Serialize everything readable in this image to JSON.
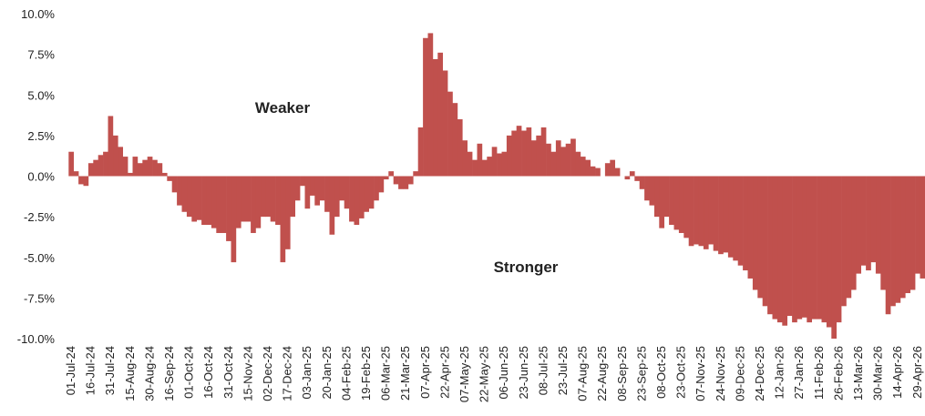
{
  "chart_data": {
    "type": "bar",
    "color": "#c0504d",
    "grid": false,
    "annotations": [
      "Weaker",
      "Stronger"
    ],
    "ylim": [
      -10,
      10
    ],
    "yticks": [
      {
        "value": -10,
        "label": "-10.0%"
      },
      {
        "value": -7.5,
        "label": "-7.5%"
      },
      {
        "value": -5,
        "label": "-5.0%"
      },
      {
        "value": -2.5,
        "label": "-2.5%"
      },
      {
        "value": 0,
        "label": "0.0%"
      },
      {
        "value": 2.5,
        "label": "2.5%"
      },
      {
        "value": 5,
        "label": "5.0%"
      },
      {
        "value": 7.5,
        "label": "7.5%"
      },
      {
        "value": 10,
        "label": "10.0%"
      }
    ],
    "categories": [
      "01-Jul-24",
      null,
      null,
      null,
      "16-Jul-24",
      null,
      null,
      null,
      "31-Jul-24",
      null,
      null,
      null,
      "15-Aug-24",
      null,
      null,
      null,
      "30-Aug-24",
      null,
      null,
      null,
      "16-Sep-24",
      null,
      null,
      null,
      "01-Oct-24",
      null,
      null,
      null,
      "16-Oct-24",
      null,
      null,
      null,
      "31-Oct-24",
      null,
      null,
      null,
      "15-Nov-24",
      null,
      null,
      null,
      "02-Dec-24",
      null,
      null,
      null,
      "17-Dec-24",
      null,
      null,
      null,
      "03-Jan-25",
      null,
      null,
      null,
      "20-Jan-25",
      null,
      null,
      null,
      "04-Feb-25",
      null,
      null,
      null,
      "19-Feb-25",
      null,
      null,
      null,
      "06-Mar-25",
      null,
      null,
      null,
      "21-Mar-25",
      null,
      null,
      null,
      "07-Apr-25",
      null,
      null,
      null,
      "22-Apr-25",
      null,
      null,
      null,
      "07-May-25",
      null,
      null,
      null,
      "22-May-25",
      null,
      null,
      null,
      "06-Jun-25",
      null,
      null,
      null,
      "23-Jun-25",
      null,
      null,
      null,
      "08-Jul-25",
      null,
      null,
      null,
      "23-Jul-25",
      null,
      null,
      null,
      "07-Aug-25",
      null,
      null,
      null,
      "22-Aug-25",
      null,
      null,
      null,
      "08-Sep-25",
      null,
      null,
      null,
      "23-Sep-25",
      null,
      null,
      null,
      "08-Oct-25",
      null,
      null,
      null,
      "23-Oct-25",
      null,
      null,
      null,
      "07-Nov-25",
      null,
      null,
      null,
      "24-Nov-25",
      null,
      null,
      null,
      "09-Dec-25",
      null,
      null,
      null,
      "24-Dec-25",
      null,
      null,
      null,
      "12-Jan-26",
      null,
      null,
      null,
      "27-Jan-26",
      null,
      null,
      null,
      "11-Feb-26",
      null,
      null,
      null,
      "26-Feb-26",
      null,
      null,
      null,
      "13-Mar-26",
      null,
      null,
      null,
      "30-Mar-26",
      null,
      null,
      null,
      "14-Apr-26",
      null,
      null,
      null,
      "29-Apr-26",
      null
    ],
    "values": [
      1.5,
      0.3,
      -0.5,
      -0.6,
      0.8,
      1.0,
      1.3,
      1.5,
      3.7,
      2.5,
      1.8,
      1.2,
      0.2,
      1.2,
      0.8,
      1.0,
      1.2,
      1.0,
      0.8,
      0.2,
      -0.3,
      -1.0,
      -1.8,
      -2.2,
      -2.5,
      -2.8,
      -2.7,
      -3.0,
      -3.0,
      -3.2,
      -3.5,
      -3.5,
      -4.0,
      -5.3,
      -3.2,
      -2.8,
      -2.8,
      -3.5,
      -3.2,
      -2.5,
      -2.5,
      -2.8,
      -3.0,
      -5.3,
      -4.5,
      -2.5,
      -1.5,
      -0.6,
      -2.0,
      -1.2,
      -1.8,
      -1.5,
      -2.2,
      -3.6,
      -2.5,
      -1.5,
      -2.0,
      -2.8,
      -3.0,
      -2.6,
      -2.2,
      -2.0,
      -1.5,
      -1.0,
      -0.2,
      0.3,
      -0.5,
      -0.8,
      -0.8,
      -0.5,
      0.3,
      3.0,
      8.5,
      8.8,
      7.2,
      7.6,
      6.5,
      5.2,
      4.5,
      3.5,
      2.2,
      1.5,
      1.0,
      2.0,
      1.0,
      1.2,
      1.8,
      1.4,
      1.5,
      2.5,
      2.8,
      3.1,
      2.8,
      3.0,
      2.2,
      2.5,
      3.0,
      2.0,
      1.5,
      2.2,
      1.8,
      2.0,
      2.3,
      1.5,
      1.2,
      1.0,
      0.6,
      0.5,
      0.0,
      0.8,
      1.0,
      0.5,
      0.0,
      -0.2,
      0.3,
      -0.3,
      -0.8,
      -1.5,
      -1.8,
      -2.5,
      -3.2,
      -2.5,
      -3.0,
      -3.3,
      -3.5,
      -3.8,
      -4.3,
      -4.2,
      -4.3,
      -4.5,
      -4.2,
      -4.6,
      -4.8,
      -4.7,
      -5.0,
      -5.2,
      -5.5,
      -5.8,
      -6.3,
      -7.0,
      -7.5,
      -8.0,
      -8.5,
      -8.8,
      -9.0,
      -9.2,
      -8.6,
      -9.0,
      -8.8,
      -8.7,
      -9.0,
      -8.8,
      -8.8,
      -9.0,
      -9.3,
      -10.0,
      -9.0,
      -8.0,
      -7.5,
      -7.0,
      -6.0,
      -5.5,
      -5.8,
      -5.3,
      -6.0,
      -7.0,
      -8.5,
      -8.0,
      -7.8,
      -7.5,
      -7.2,
      -7.0,
      -6.0,
      -6.3
    ]
  }
}
